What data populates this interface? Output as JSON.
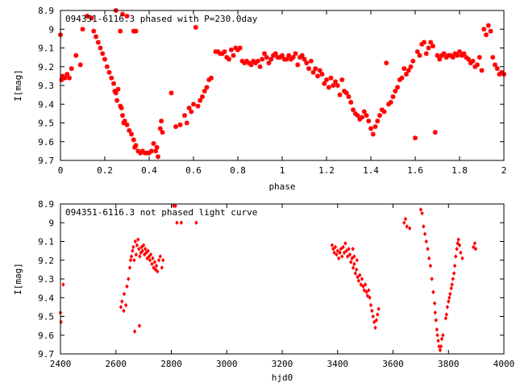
{
  "chart_data": [
    {
      "type": "scatter",
      "title": "094351-6116.3 phased with P=230.0day",
      "xlabel": "phase",
      "ylabel": "I[mag]",
      "xlim": [
        0,
        2
      ],
      "ylim": [
        8.9,
        9.7
      ],
      "y_inverted": true,
      "grid": false,
      "marker": "red-asterisk",
      "color": "#ff0000",
      "x_ticks": [
        "0",
        "0.2",
        "0.4",
        "0.6",
        "0.8",
        "1",
        "1.2",
        "1.4",
        "1.6",
        "1.8",
        "2"
      ],
      "y_ticks": [
        "8.9",
        "9",
        "9.1",
        "9.2",
        "9.3",
        "9.4",
        "9.5",
        "9.6",
        "9.7"
      ],
      "points": [
        [
          0.0,
          9.03
        ],
        [
          0.005,
          9.27
        ],
        [
          0.01,
          9.25
        ],
        [
          0.02,
          9.26
        ],
        [
          0.03,
          9.24
        ],
        [
          0.04,
          9.26
        ],
        [
          0.05,
          9.21
        ],
        [
          0.07,
          9.14
        ],
        [
          0.09,
          9.19
        ],
        [
          0.1,
          9.0
        ],
        [
          0.12,
          8.93
        ],
        [
          0.14,
          8.94
        ],
        [
          0.15,
          9.01
        ],
        [
          0.16,
          9.04
        ],
        [
          0.17,
          9.07
        ],
        [
          0.18,
          9.1
        ],
        [
          0.19,
          9.13
        ],
        [
          0.2,
          9.16
        ],
        [
          0.21,
          9.2
        ],
        [
          0.22,
          9.23
        ],
        [
          0.23,
          9.26
        ],
        [
          0.24,
          9.29
        ],
        [
          0.245,
          9.33
        ],
        [
          0.25,
          9.34
        ],
        [
          0.255,
          9.38
        ],
        [
          0.26,
          9.32
        ],
        [
          0.27,
          9.41
        ],
        [
          0.275,
          9.42
        ],
        [
          0.28,
          9.46
        ],
        [
          0.285,
          9.5
        ],
        [
          0.29,
          9.49
        ],
        [
          0.3,
          9.51
        ],
        [
          0.31,
          9.54
        ],
        [
          0.32,
          9.56
        ],
        [
          0.33,
          9.59
        ],
        [
          0.335,
          9.63
        ],
        [
          0.34,
          9.62
        ],
        [
          0.35,
          9.65
        ],
        [
          0.36,
          9.66
        ],
        [
          0.37,
          9.65
        ],
        [
          0.38,
          9.66
        ],
        [
          0.39,
          9.66
        ],
        [
          0.4,
          9.66
        ],
        [
          0.41,
          9.65
        ],
        [
          0.42,
          9.61
        ],
        [
          0.43,
          9.65
        ],
        [
          0.435,
          9.63
        ],
        [
          0.44,
          9.68
        ],
        [
          0.45,
          9.53
        ],
        [
          0.455,
          9.49
        ],
        [
          0.46,
          9.55
        ],
        [
          0.25,
          8.9
        ],
        [
          0.27,
          9.01
        ],
        [
          0.28,
          8.92
        ],
        [
          0.3,
          8.93
        ],
        [
          0.33,
          9.01
        ],
        [
          0.34,
          9.01
        ],
        [
          0.5,
          9.34
        ],
        [
          0.52,
          9.52
        ],
        [
          0.54,
          9.51
        ],
        [
          0.56,
          9.46
        ],
        [
          0.57,
          9.5
        ],
        [
          0.58,
          9.42
        ],
        [
          0.59,
          9.44
        ],
        [
          0.6,
          9.4
        ],
        [
          0.61,
          8.99
        ],
        [
          0.62,
          9.41
        ],
        [
          0.63,
          9.38
        ],
        [
          0.64,
          9.36
        ],
        [
          0.65,
          9.33
        ],
        [
          0.66,
          9.31
        ],
        [
          0.67,
          9.27
        ],
        [
          0.68,
          9.26
        ],
        [
          0.7,
          9.12
        ],
        [
          0.71,
          9.12
        ],
        [
          0.72,
          9.13
        ],
        [
          0.73,
          9.13
        ],
        [
          0.74,
          9.12
        ],
        [
          0.75,
          9.15
        ],
        [
          0.76,
          9.16
        ],
        [
          0.77,
          9.11
        ],
        [
          0.78,
          9.14
        ],
        [
          0.79,
          9.1
        ],
        [
          0.8,
          9.11
        ],
        [
          0.81,
          9.1
        ],
        [
          0.82,
          9.17
        ],
        [
          0.83,
          9.18
        ],
        [
          0.84,
          9.17
        ],
        [
          0.85,
          9.18
        ],
        [
          0.86,
          9.19
        ],
        [
          0.87,
          9.17
        ],
        [
          0.88,
          9.18
        ],
        [
          0.89,
          9.17
        ],
        [
          0.9,
          9.2
        ],
        [
          0.91,
          9.16
        ],
        [
          0.92,
          9.13
        ],
        [
          0.93,
          9.15
        ],
        [
          0.94,
          9.18
        ],
        [
          0.95,
          9.16
        ],
        [
          0.96,
          9.14
        ],
        [
          0.97,
          9.13
        ],
        [
          0.98,
          9.15
        ],
        [
          0.99,
          9.15
        ],
        [
          1.0,
          9.14
        ],
        [
          1.01,
          9.16
        ],
        [
          1.02,
          9.16
        ],
        [
          1.03,
          9.14
        ],
        [
          1.04,
          9.16
        ],
        [
          1.05,
          9.15
        ],
        [
          1.06,
          9.13
        ],
        [
          1.07,
          9.19
        ],
        [
          1.08,
          9.15
        ],
        [
          1.09,
          9.14
        ],
        [
          1.1,
          9.16
        ],
        [
          1.11,
          9.18
        ],
        [
          1.12,
          9.21
        ],
        [
          1.13,
          9.17
        ],
        [
          1.14,
          9.23
        ],
        [
          1.15,
          9.21
        ],
        [
          1.16,
          9.25
        ],
        [
          1.17,
          9.22
        ],
        [
          1.18,
          9.24
        ],
        [
          1.19,
          9.29
        ],
        [
          1.2,
          9.27
        ],
        [
          1.21,
          9.31
        ],
        [
          1.22,
          9.26
        ],
        [
          1.23,
          9.3
        ],
        [
          1.24,
          9.28
        ],
        [
          1.25,
          9.3
        ],
        [
          1.26,
          9.35
        ],
        [
          1.27,
          9.27
        ],
        [
          1.28,
          9.33
        ],
        [
          1.29,
          9.34
        ],
        [
          1.3,
          9.36
        ],
        [
          1.31,
          9.39
        ],
        [
          1.32,
          9.43
        ],
        [
          1.33,
          9.45
        ],
        [
          1.34,
          9.46
        ],
        [
          1.35,
          9.48
        ],
        [
          1.36,
          9.47
        ],
        [
          1.37,
          9.44
        ],
        [
          1.38,
          9.46
        ],
        [
          1.39,
          9.49
        ],
        [
          1.4,
          9.53
        ],
        [
          1.41,
          9.56
        ],
        [
          1.42,
          9.52
        ],
        [
          1.43,
          9.49
        ],
        [
          1.44,
          9.46
        ],
        [
          1.45,
          9.43
        ],
        [
          1.46,
          9.44
        ],
        [
          1.47,
          9.18
        ],
        [
          1.48,
          9.4
        ],
        [
          1.49,
          9.39
        ],
        [
          1.5,
          9.36
        ],
        [
          1.51,
          9.33
        ],
        [
          1.52,
          9.31
        ],
        [
          1.53,
          9.27
        ],
        [
          1.54,
          9.26
        ],
        [
          1.55,
          9.21
        ],
        [
          1.56,
          9.24
        ],
        [
          1.57,
          9.22
        ],
        [
          1.58,
          9.2
        ],
        [
          1.59,
          9.17
        ],
        [
          1.6,
          9.58
        ],
        [
          1.61,
          9.12
        ],
        [
          1.62,
          9.14
        ],
        [
          1.63,
          9.08
        ],
        [
          1.64,
          9.07
        ],
        [
          1.65,
          9.13
        ],
        [
          1.66,
          9.1
        ],
        [
          1.67,
          9.07
        ],
        [
          1.68,
          9.09
        ],
        [
          1.69,
          9.55
        ],
        [
          1.7,
          9.14
        ],
        [
          1.71,
          9.16
        ],
        [
          1.72,
          9.14
        ],
        [
          1.73,
          9.13
        ],
        [
          1.74,
          9.15
        ],
        [
          1.75,
          9.14
        ],
        [
          1.76,
          9.14
        ],
        [
          1.77,
          9.15
        ],
        [
          1.78,
          9.13
        ],
        [
          1.79,
          9.14
        ],
        [
          1.8,
          9.12
        ],
        [
          1.81,
          9.14
        ],
        [
          1.82,
          9.13
        ],
        [
          1.83,
          9.15
        ],
        [
          1.84,
          9.16
        ],
        [
          1.85,
          9.18
        ],
        [
          1.86,
          9.17
        ],
        [
          1.87,
          9.2
        ],
        [
          1.88,
          9.19
        ],
        [
          1.89,
          9.15
        ],
        [
          1.9,
          9.22
        ],
        [
          1.91,
          9.0
        ],
        [
          1.92,
          9.03
        ],
        [
          1.93,
          8.98
        ],
        [
          1.94,
          9.01
        ],
        [
          1.95,
          9.15
        ],
        [
          1.96,
          9.19
        ],
        [
          1.97,
          9.21
        ],
        [
          1.98,
          9.24
        ],
        [
          1.99,
          9.23
        ],
        [
          2.0,
          9.24
        ]
      ]
    },
    {
      "type": "scatter",
      "title": "094351-6116.3 not phased light curve",
      "xlabel": "hjd0",
      "ylabel": "I[mag]",
      "xlim": [
        2400,
        4000
      ],
      "ylim": [
        8.9,
        9.7
      ],
      "y_inverted": true,
      "grid": false,
      "marker": "red-diamond",
      "color": "#ff0000",
      "x_ticks": [
        "2400",
        "2600",
        "2800",
        "3000",
        "3200",
        "3400",
        "3600",
        "3800",
        "4000"
      ],
      "y_ticks": [
        "8.9",
        "9",
        "9.1",
        "9.2",
        "9.3",
        "9.4",
        "9.5",
        "9.6",
        "9.7"
      ],
      "points": [
        [
          2400,
          9.48
        ],
        [
          2402,
          9.53
        ],
        [
          2410,
          9.33
        ],
        [
          2618,
          9.45
        ],
        [
          2622,
          9.42
        ],
        [
          2628,
          9.47
        ],
        [
          2630,
          9.38
        ],
        [
          2636,
          9.44
        ],
        [
          2640,
          9.34
        ],
        [
          2645,
          9.3
        ],
        [
          2650,
          9.24
        ],
        [
          2653,
          9.2
        ],
        [
          2656,
          9.18
        ],
        [
          2660,
          9.15
        ],
        [
          2663,
          9.13
        ],
        [
          2666,
          9.2
        ],
        [
          2670,
          9.1
        ],
        [
          2673,
          9.17
        ],
        [
          2676,
          9.12
        ],
        [
          2680,
          9.09
        ],
        [
          2683,
          9.14
        ],
        [
          2686,
          9.18
        ],
        [
          2690,
          9.16
        ],
        [
          2693,
          9.13
        ],
        [
          2696,
          9.15
        ],
        [
          2700,
          9.12
        ],
        [
          2703,
          9.17
        ],
        [
          2706,
          9.14
        ],
        [
          2710,
          9.16
        ],
        [
          2713,
          9.19
        ],
        [
          2716,
          9.15
        ],
        [
          2720,
          9.18
        ],
        [
          2723,
          9.2
        ],
        [
          2726,
          9.17
        ],
        [
          2730,
          9.22
        ],
        [
          2733,
          9.19
        ],
        [
          2736,
          9.24
        ],
        [
          2740,
          9.21
        ],
        [
          2743,
          9.25
        ],
        [
          2746,
          9.23
        ],
        [
          2750,
          9.26
        ],
        [
          2755,
          9.2
        ],
        [
          2760,
          9.18
        ],
        [
          2766,
          9.24
        ],
        [
          2770,
          9.2
        ],
        [
          2808,
          8.91
        ],
        [
          2815,
          8.91
        ],
        [
          2820,
          9.0
        ],
        [
          2836,
          9.0
        ],
        [
          2890,
          9.0
        ],
        [
          2668,
          9.58
        ],
        [
          2685,
          9.55
        ],
        [
          3380,
          9.12
        ],
        [
          3384,
          9.14
        ],
        [
          3388,
          9.16
        ],
        [
          3392,
          9.13
        ],
        [
          3396,
          9.17
        ],
        [
          3400,
          9.15
        ],
        [
          3404,
          9.19
        ],
        [
          3408,
          9.16
        ],
        [
          3412,
          9.14
        ],
        [
          3416,
          9.18
        ],
        [
          3420,
          9.13
        ],
        [
          3424,
          9.16
        ],
        [
          3428,
          9.11
        ],
        [
          3432,
          9.15
        ],
        [
          3436,
          9.18
        ],
        [
          3440,
          9.14
        ],
        [
          3444,
          9.17
        ],
        [
          3448,
          9.21
        ],
        [
          3452,
          9.19
        ],
        [
          3456,
          9.24
        ],
        [
          3460,
          9.22
        ],
        [
          3464,
          9.27
        ],
        [
          3468,
          9.25
        ],
        [
          3472,
          9.29
        ],
        [
          3476,
          9.31
        ],
        [
          3480,
          9.28
        ],
        [
          3484,
          9.33
        ],
        [
          3488,
          9.3
        ],
        [
          3492,
          9.34
        ],
        [
          3496,
          9.36
        ],
        [
          3500,
          9.33
        ],
        [
          3504,
          9.37
        ],
        [
          3508,
          9.39
        ],
        [
          3512,
          9.36
        ],
        [
          3516,
          9.4
        ],
        [
          3520,
          9.44
        ],
        [
          3524,
          9.47
        ],
        [
          3528,
          9.5
        ],
        [
          3532,
          9.53
        ],
        [
          3536,
          9.56
        ],
        [
          3540,
          9.52
        ],
        [
          3544,
          9.49
        ],
        [
          3548,
          9.46
        ],
        [
          3455,
          9.14
        ],
        [
          3460,
          9.18
        ],
        [
          3470,
          9.2
        ],
        [
          3640,
          9.0
        ],
        [
          3645,
          8.98
        ],
        [
          3650,
          9.02
        ],
        [
          3660,
          9.03
        ],
        [
          3700,
          8.93
        ],
        [
          3705,
          8.95
        ],
        [
          3710,
          9.02
        ],
        [
          3715,
          9.06
        ],
        [
          3720,
          9.1
        ],
        [
          3725,
          9.14
        ],
        [
          3730,
          9.19
        ],
        [
          3735,
          9.23
        ],
        [
          3740,
          9.3
        ],
        [
          3745,
          9.37
        ],
        [
          3750,
          9.43
        ],
        [
          3752,
          9.48
        ],
        [
          3755,
          9.52
        ],
        [
          3758,
          9.57
        ],
        [
          3760,
          9.6
        ],
        [
          3763,
          9.63
        ],
        [
          3766,
          9.66
        ],
        [
          3770,
          9.68
        ],
        [
          3773,
          9.66
        ],
        [
          3776,
          9.62
        ],
        [
          3790,
          9.51
        ],
        [
          3793,
          9.49
        ],
        [
          3796,
          9.45
        ],
        [
          3800,
          9.42
        ],
        [
          3803,
          9.4
        ],
        [
          3806,
          9.38
        ],
        [
          3810,
          9.35
        ],
        [
          3813,
          9.33
        ],
        [
          3816,
          9.3
        ],
        [
          3820,
          9.27
        ],
        [
          3823,
          9.23
        ],
        [
          3826,
          9.18
        ],
        [
          3830,
          9.14
        ],
        [
          3833,
          9.11
        ],
        [
          3836,
          9.09
        ],
        [
          3840,
          9.12
        ],
        [
          3844,
          9.16
        ],
        [
          3850,
          9.19
        ],
        [
          3890,
          9.13
        ],
        [
          3895,
          9.11
        ],
        [
          3898,
          9.14
        ],
        [
          3780,
          9.6
        ]
      ]
    }
  ]
}
